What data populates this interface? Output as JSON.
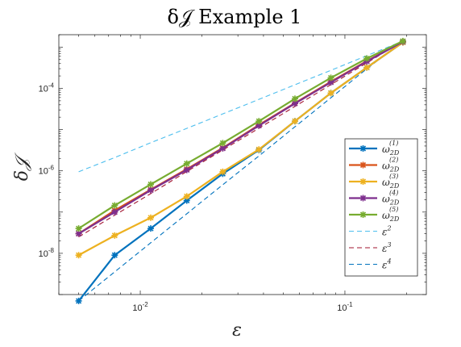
{
  "chart_data": {
    "type": "line",
    "title": "δ𝒥 Example 1",
    "xlabel": "ε",
    "ylabel": "δ𝒥",
    "xscale": "log",
    "yscale": "log",
    "xlim": [
      0.004,
      0.25
    ],
    "ylim": [
      1e-09,
      0.002
    ],
    "grid": false,
    "legend_position": "lower-right",
    "x_ticks": [
      {
        "value": 0.01,
        "base": "10",
        "exp": "-2"
      },
      {
        "value": 0.1,
        "base": "10",
        "exp": "-1"
      }
    ],
    "y_ticks": [
      {
        "value": 1e-08,
        "base": "10",
        "exp": "-8"
      },
      {
        "value": 1e-06,
        "base": "10",
        "exp": "-6"
      },
      {
        "value": 0.0001,
        "base": "10",
        "exp": "-4"
      }
    ],
    "x": [
      0.005,
      0.0075,
      0.01125,
      0.016875,
      0.0253,
      0.038,
      0.057,
      0.0854,
      0.128,
      0.192
    ],
    "series": [
      {
        "name": "ω_{2D}^{(1)}",
        "base": "ω",
        "sub": "2D",
        "sup": "(1)",
        "color": "#0072BD",
        "style": "solid",
        "marker": true,
        "values": [
          7e-10,
          9e-09,
          4e-08,
          1.9e-07,
          8.5e-07,
          3.2e-06,
          1.6e-05,
          7.7e-05,
          0.00032,
          0.0013
        ]
      },
      {
        "name": "ω_{2D}^{(2)}",
        "base": "ω",
        "sub": "2D",
        "sup": "(2)",
        "color": "#D95319",
        "style": "solid",
        "marker": true,
        "values": [
          3e-08,
          1.1e-07,
          3.5e-07,
          1.1e-06,
          3.6e-06,
          1.3e-05,
          4.4e-05,
          0.000145,
          0.00046,
          0.00135
        ]
      },
      {
        "name": "ω_{2D}^{(3)}",
        "base": "ω",
        "sub": "2D",
        "sup": "(3)",
        "color": "#EDB120",
        "style": "solid",
        "marker": true,
        "values": [
          9e-09,
          2.7e-08,
          7.3e-08,
          2.4e-07,
          9.5e-07,
          3.3e-06,
          1.6e-05,
          7.7e-05,
          0.00032,
          0.0013
        ]
      },
      {
        "name": "ω_{2D}^{(4)}",
        "base": "ω",
        "sub": "2D",
        "sup": "(4)",
        "color": "#7E2F8E",
        "style": "solid",
        "marker": true,
        "values": [
          3e-08,
          1e-07,
          3.4e-07,
          1.05e-06,
          3.5e-06,
          1.25e-05,
          4.3e-05,
          0.00014,
          0.00045,
          0.00135
        ]
      },
      {
        "name": "ω_{2D}^{(5)}",
        "base": "ω",
        "sub": "2D",
        "sup": "(5)",
        "color": "#77AC30",
        "style": "solid",
        "marker": true,
        "values": [
          4e-08,
          1.45e-07,
          4.7e-07,
          1.5e-06,
          4.7e-06,
          1.6e-05,
          5.6e-05,
          0.00018,
          0.00053,
          0.0014
        ]
      },
      {
        "name": "ε^2",
        "base": "ε",
        "sub": "",
        "sup": "2",
        "color": "#4DBEEE",
        "style": "dashed",
        "marker": false,
        "values": [
          9.5e-07,
          2.1e-06,
          4.8e-06,
          1.07e-05,
          2.4e-05,
          5.4e-05,
          0.000122,
          0.000274,
          0.00062,
          0.0014
        ]
      },
      {
        "name": "ε^3",
        "base": "ε",
        "sub": "",
        "sup": "3",
        "color": "#A2142F",
        "style": "dashed",
        "marker": false,
        "values": [
          2.5e-08,
          8.4e-08,
          2.8e-07,
          9.6e-07,
          3.2e-06,
          1.08e-05,
          3.65e-05,
          0.000123,
          0.000415,
          0.0014
        ]
      },
      {
        "name": "ε^4",
        "base": "ε",
        "sub": "",
        "sup": "4",
        "color": "#0072BD",
        "style": "dashed",
        "marker": false,
        "values": [
          7e-10,
          3.55e-09,
          1.8e-08,
          9.1e-08,
          4.6e-07,
          2.3e-06,
          1.17e-05,
          5.9e-05,
          0.000298,
          0.0014
        ]
      }
    ]
  }
}
